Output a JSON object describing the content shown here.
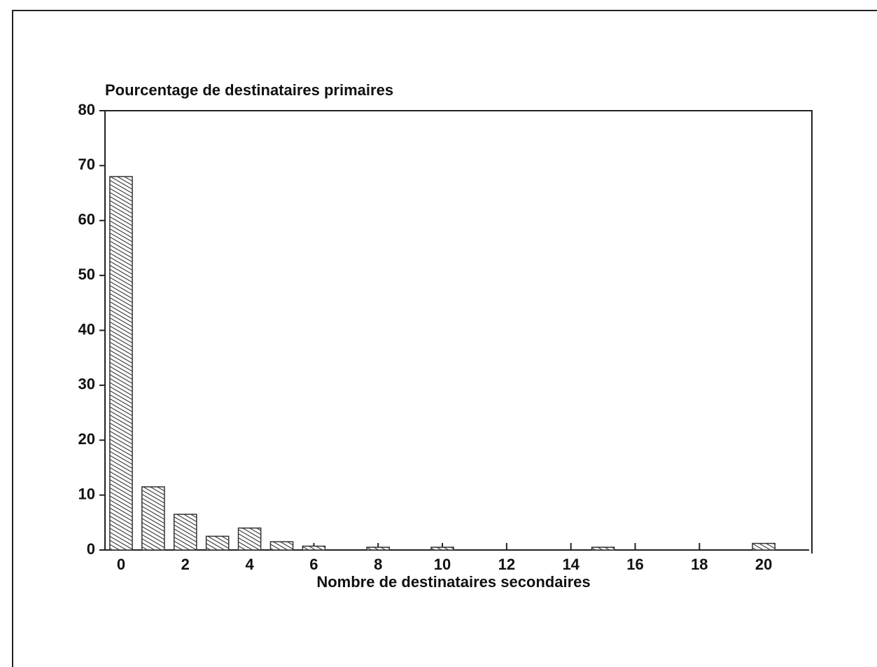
{
  "chart_data": {
    "type": "bar",
    "ylabel": "Pourcentage de destinataires primaires",
    "xlabel": "Nombre de destinataires secondaires",
    "x": [
      0,
      1,
      2,
      3,
      4,
      5,
      6,
      8,
      10,
      15,
      20
    ],
    "values": [
      68,
      11.5,
      6.5,
      2.5,
      4,
      1.5,
      0.7,
      0.5,
      0.5,
      0.5,
      1.2
    ],
    "color": "#333333",
    "xlim": [
      -0.5,
      21.5
    ],
    "xticks": [
      0,
      2,
      4,
      6,
      8,
      10,
      12,
      14,
      16,
      18,
      20
    ],
    "ylim": [
      0,
      80
    ],
    "yticks": [
      0,
      10,
      20,
      30,
      40,
      50,
      60,
      70,
      80
    ],
    "grid": false
  }
}
